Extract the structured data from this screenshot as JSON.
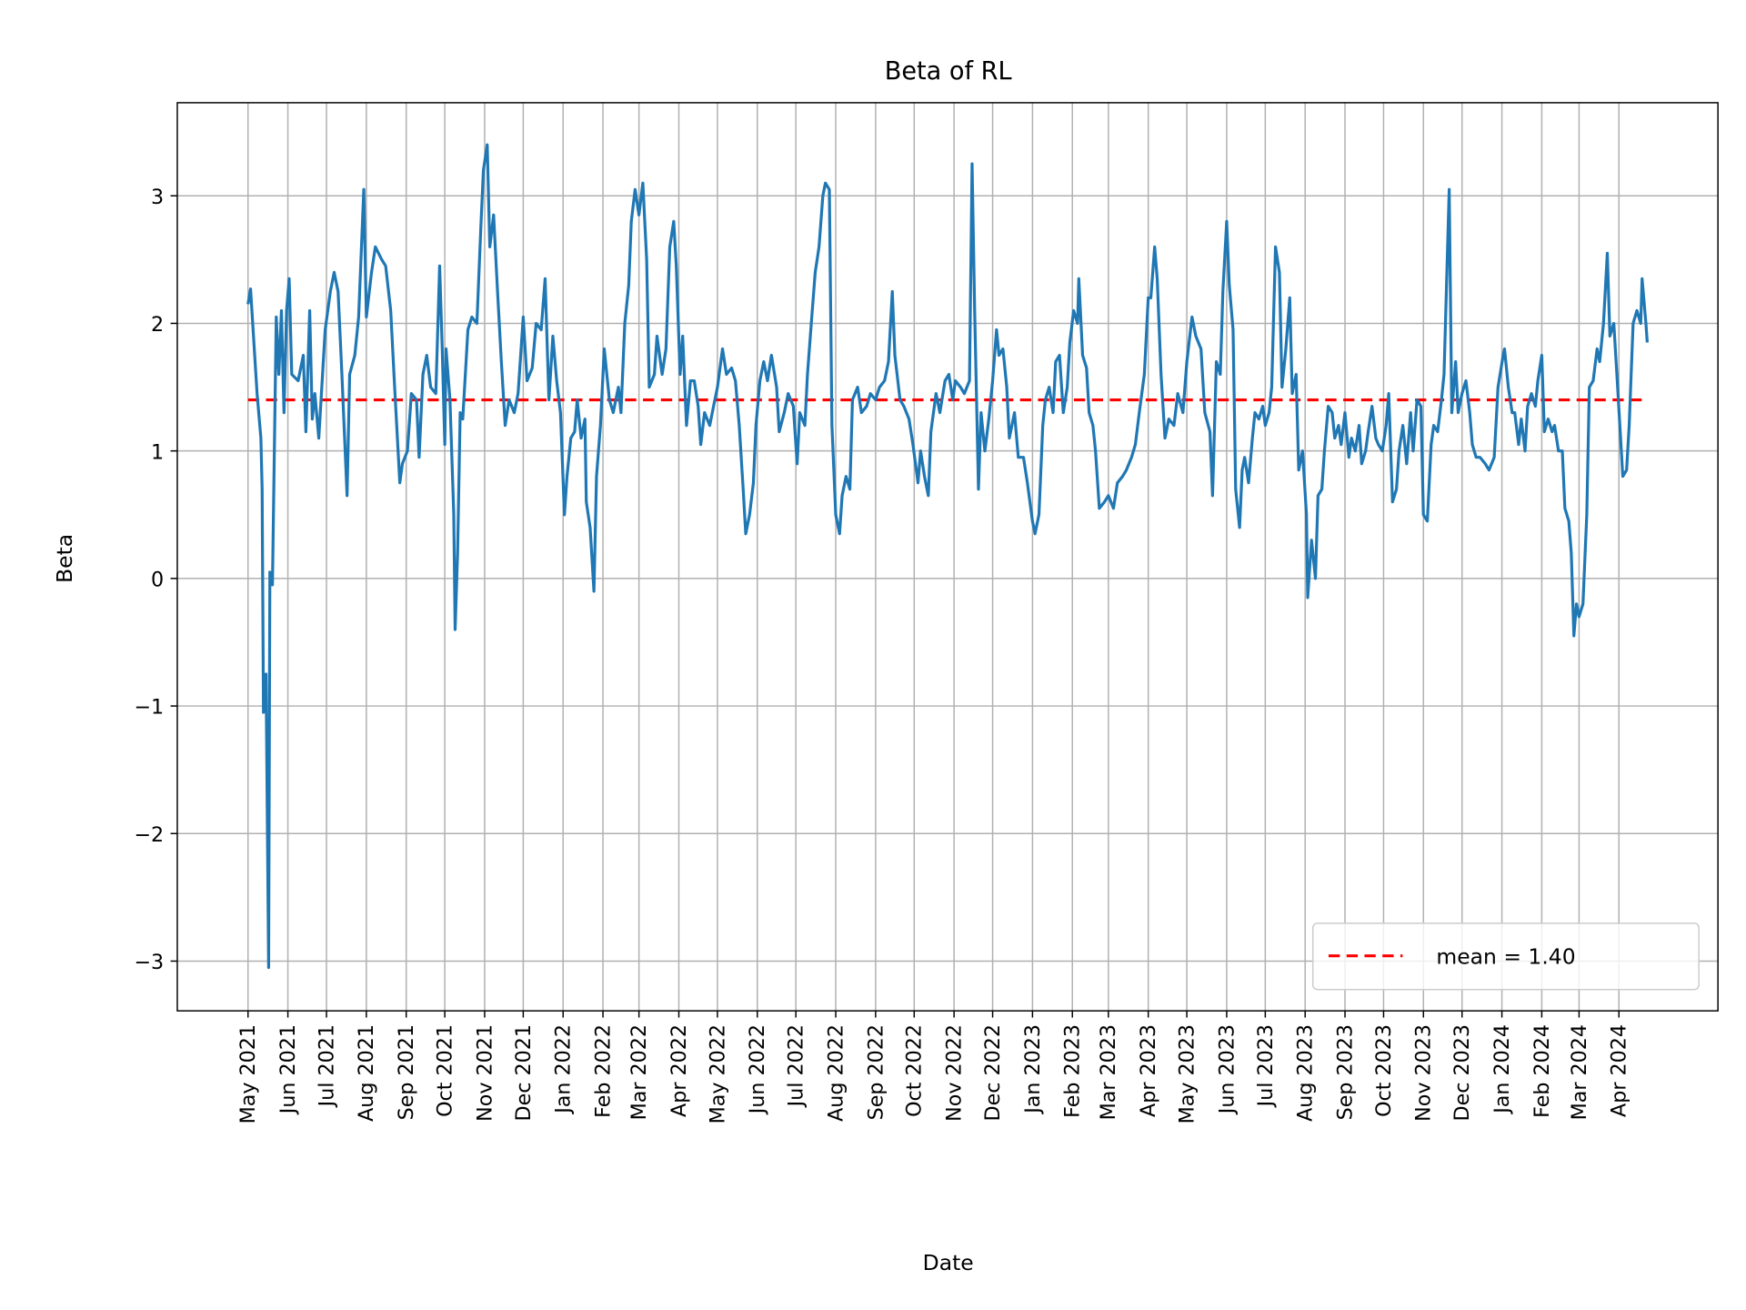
{
  "chart_data": {
    "type": "line",
    "title": "Beta of RL",
    "xlabel": "Date",
    "ylabel": "Beta",
    "xlim": [
      "2021-03-07",
      "2024-06-17"
    ],
    "ylim": [
      -3.39,
      3.73
    ],
    "grid": true,
    "legend_position": "bottom-right",
    "y_ticks": [
      -3,
      -2,
      -1,
      0,
      1,
      2,
      3
    ],
    "y_tick_labels": [
      "−3",
      "−2",
      "−1",
      "0",
      "1",
      "2",
      "3"
    ],
    "x_ticks": [
      "2021-05-01",
      "2021-06-01",
      "2021-07-01",
      "2021-08-01",
      "2021-09-01",
      "2021-10-01",
      "2021-11-01",
      "2021-12-01",
      "2022-01-01",
      "2022-02-01",
      "2022-03-01",
      "2022-04-01",
      "2022-05-01",
      "2022-06-01",
      "2022-07-01",
      "2022-08-01",
      "2022-09-01",
      "2022-10-01",
      "2022-11-01",
      "2022-12-01",
      "2023-01-01",
      "2023-02-01",
      "2023-03-01",
      "2023-04-01",
      "2023-05-01",
      "2023-06-01",
      "2023-07-01",
      "2023-08-01",
      "2023-09-01",
      "2023-10-01",
      "2023-11-01",
      "2023-12-01",
      "2024-01-01",
      "2024-02-01",
      "2024-03-01",
      "2024-04-01"
    ],
    "x_tick_labels": [
      "May 2021",
      "Jun 2021",
      "Jul 2021",
      "Aug 2021",
      "Sep 2021",
      "Oct 2021",
      "Nov 2021",
      "Dec 2021",
      "Jan 2022",
      "Feb 2022",
      "Mar 2022",
      "Apr 2022",
      "May 2022",
      "Jun 2022",
      "Jul 2022",
      "Aug 2022",
      "Sep 2022",
      "Oct 2022",
      "Nov 2022",
      "Dec 2022",
      "Jan 2023",
      "Feb 2023",
      "Mar 2023",
      "Apr 2023",
      "May 2023",
      "Jun 2023",
      "Jul 2023",
      "Aug 2023",
      "Sep 2023",
      "Oct 2023",
      "Nov 2023",
      "Dec 2023",
      "Jan 2024",
      "Feb 2024",
      "Mar 2024",
      "Apr 2024"
    ],
    "mean": {
      "value": 1.4,
      "label": "mean = 1.40",
      "color": "#ff0000",
      "style": "dashed"
    },
    "series": [
      {
        "color": "#1f77b4",
        "x": [
          "2021-05-01",
          "2021-05-03",
          "2021-05-08",
          "2021-05-11",
          "2021-05-12",
          "2021-05-13",
          "2021-05-15",
          "2021-05-17",
          "2021-05-18",
          "2021-05-20",
          "2021-05-23",
          "2021-05-25",
          "2021-05-27",
          "2021-05-29",
          "2021-05-31",
          "2021-06-02",
          "2021-06-04",
          "2021-06-09",
          "2021-06-13",
          "2021-06-15",
          "2021-06-18",
          "2021-06-20",
          "2021-06-22",
          "2021-06-25",
          "2021-06-30",
          "2021-07-04",
          "2021-07-07",
          "2021-07-10",
          "2021-07-13",
          "2021-07-17",
          "2021-07-19",
          "2021-07-23",
          "2021-07-26",
          "2021-07-30",
          "2021-08-01",
          "2021-08-05",
          "2021-08-08",
          "2021-08-13",
          "2021-08-16",
          "2021-08-20",
          "2021-08-23",
          "2021-08-27",
          "2021-08-29",
          "2021-09-02",
          "2021-09-05",
          "2021-09-09",
          "2021-09-11",
          "2021-09-14",
          "2021-09-17",
          "2021-09-20",
          "2021-09-24",
          "2021-09-27",
          "2021-09-29",
          "2021-10-01",
          "2021-10-02",
          "2021-10-05",
          "2021-10-08",
          "2021-10-09",
          "2021-10-11",
          "2021-10-13",
          "2021-10-15",
          "2021-10-19",
          "2021-10-22",
          "2021-10-26",
          "2021-10-29",
          "2021-10-31",
          "2021-11-03",
          "2021-11-05",
          "2021-11-08",
          "2021-11-11",
          "2021-11-14",
          "2021-11-17",
          "2021-11-20",
          "2021-11-24",
          "2021-11-27",
          "2021-12-01",
          "2021-12-04",
          "2021-12-08",
          "2021-12-11",
          "2021-12-15",
          "2021-12-18",
          "2021-12-21",
          "2021-12-24",
          "2021-12-27",
          "2021-12-30",
          "2022-01-02",
          "2022-01-04",
          "2022-01-07",
          "2022-01-10",
          "2022-01-12",
          "2022-01-15",
          "2022-01-18",
          "2022-01-19",
          "2022-01-22",
          "2022-01-25",
          "2022-01-27",
          "2022-01-30",
          "2022-02-02",
          "2022-02-06",
          "2022-02-09",
          "2022-02-13",
          "2022-02-15",
          "2022-02-18",
          "2022-02-21",
          "2022-02-23",
          "2022-02-26",
          "2022-03-01",
          "2022-03-04",
          "2022-03-07",
          "2022-03-09",
          "2022-03-13",
          "2022-03-15",
          "2022-03-19",
          "2022-03-22",
          "2022-03-25",
          "2022-03-28",
          "2022-03-30",
          "2022-04-02",
          "2022-04-04",
          "2022-04-07",
          "2022-04-10",
          "2022-04-13",
          "2022-04-16",
          "2022-04-18",
          "2022-04-21",
          "2022-04-25",
          "2022-04-28",
          "2022-05-01",
          "2022-05-05",
          "2022-05-08",
          "2022-05-12",
          "2022-05-15",
          "2022-05-18",
          "2022-05-21",
          "2022-05-23",
          "2022-05-26",
          "2022-05-29",
          "2022-05-31",
          "2022-06-03",
          "2022-06-06",
          "2022-06-09",
          "2022-06-12",
          "2022-06-16",
          "2022-06-18",
          "2022-06-22",
          "2022-06-25",
          "2022-06-29",
          "2022-07-02",
          "2022-07-04",
          "2022-07-08",
          "2022-07-10",
          "2022-07-13",
          "2022-07-16",
          "2022-07-19",
          "2022-07-22",
          "2022-07-24",
          "2022-07-27",
          "2022-07-29",
          "2022-08-01",
          "2022-08-04",
          "2022-08-06",
          "2022-08-09",
          "2022-08-12",
          "2022-08-14",
          "2022-08-18",
          "2022-08-21",
          "2022-08-25",
          "2022-08-28",
          "2022-09-01",
          "2022-09-04",
          "2022-09-08",
          "2022-09-11",
          "2022-09-14",
          "2022-09-16",
          "2022-09-20",
          "2022-09-23",
          "2022-09-27",
          "2022-09-30",
          "2022-10-04",
          "2022-10-06",
          "2022-10-09",
          "2022-10-12",
          "2022-10-14",
          "2022-10-18",
          "2022-10-21",
          "2022-10-25",
          "2022-10-28",
          "2022-10-31",
          "2022-11-02",
          "2022-11-06",
          "2022-11-09",
          "2022-11-13",
          "2022-11-15",
          "2022-11-17",
          "2022-11-20",
          "2022-11-22",
          "2022-11-25",
          "2022-11-28",
          "2022-12-01",
          "2022-12-04",
          "2022-12-06",
          "2022-12-09",
          "2022-12-12",
          "2022-12-14",
          "2022-12-18",
          "2022-12-21",
          "2022-12-25",
          "2022-12-28",
          "2023-01-01",
          "2023-01-03",
          "2023-01-06",
          "2023-01-09",
          "2023-01-11",
          "2023-01-14",
          "2023-01-17",
          "2023-01-19",
          "2023-01-22",
          "2023-01-25",
          "2023-01-28",
          "2023-01-30",
          "2023-02-02",
          "2023-02-05",
          "2023-02-06",
          "2023-02-09",
          "2023-02-12",
          "2023-02-14",
          "2023-02-17",
          "2023-02-19",
          "2023-02-22",
          "2023-02-26",
          "2023-03-01",
          "2023-03-05",
          "2023-03-08",
          "2023-03-12",
          "2023-03-15",
          "2023-03-19",
          "2023-03-22",
          "2023-03-25",
          "2023-03-29",
          "2023-04-01",
          "2023-04-03",
          "2023-04-06",
          "2023-04-08",
          "2023-04-11",
          "2023-04-14",
          "2023-04-17",
          "2023-04-21",
          "2023-04-24",
          "2023-04-28",
          "2023-05-01",
          "2023-05-05",
          "2023-05-08",
          "2023-05-12",
          "2023-05-15",
          "2023-05-19",
          "2023-05-21",
          "2023-05-24",
          "2023-05-27",
          "2023-05-29",
          "2023-06-01",
          "2023-06-03",
          "2023-06-06",
          "2023-06-08",
          "2023-06-11",
          "2023-06-13",
          "2023-06-15",
          "2023-06-18",
          "2023-06-21",
          "2023-06-23",
          "2023-06-26",
          "2023-06-29",
          "2023-07-01",
          "2023-07-04",
          "2023-07-06",
          "2023-07-09",
          "2023-07-12",
          "2023-07-14",
          "2023-07-17",
          "2023-07-20",
          "2023-07-22",
          "2023-07-25",
          "2023-07-27",
          "2023-07-30",
          "2023-08-02",
          "2023-08-03",
          "2023-08-06",
          "2023-08-09",
          "2023-08-11",
          "2023-08-14",
          "2023-08-16",
          "2023-08-19",
          "2023-08-22",
          "2023-08-24",
          "2023-08-27",
          "2023-08-29",
          "2023-09-01",
          "2023-09-04",
          "2023-09-06",
          "2023-09-09",
          "2023-09-12",
          "2023-09-14",
          "2023-09-17",
          "2023-09-19",
          "2023-09-22",
          "2023-09-25",
          "2023-09-27",
          "2023-09-30",
          "2023-10-03",
          "2023-10-05",
          "2023-10-08",
          "2023-10-11",
          "2023-10-13",
          "2023-10-16",
          "2023-10-19",
          "2023-10-22",
          "2023-10-24",
          "2023-10-27",
          "2023-10-30",
          "2023-11-01",
          "2023-11-04",
          "2023-11-07",
          "2023-11-09",
          "2023-11-12",
          "2023-11-15",
          "2023-11-17",
          "2023-11-21",
          "2023-11-23",
          "2023-11-26",
          "2023-11-28",
          "2023-12-01",
          "2023-12-04",
          "2023-12-07",
          "2023-12-09",
          "2023-12-12",
          "2023-12-15",
          "2023-12-19",
          "2023-12-22",
          "2023-12-26",
          "2023-12-29",
          "2024-01-02",
          "2024-01-03",
          "2024-01-06",
          "2024-01-09",
          "2024-01-11",
          "2024-01-14",
          "2024-01-16",
          "2024-01-19",
          "2024-01-21",
          "2024-01-24",
          "2024-01-27",
          "2024-01-29",
          "2024-02-01",
          "2024-02-03",
          "2024-02-06",
          "2024-02-09",
          "2024-02-11",
          "2024-02-14",
          "2024-02-17",
          "2024-02-19",
          "2024-02-22",
          "2024-02-24",
          "2024-02-26",
          "2024-02-28",
          "2024-03-01",
          "2024-03-04",
          "2024-03-07",
          "2024-03-09",
          "2024-03-12",
          "2024-03-15",
          "2024-03-17",
          "2024-03-20",
          "2024-03-23",
          "2024-03-25",
          "2024-03-28",
          "2024-03-31",
          "2024-04-02",
          "2024-04-04",
          "2024-04-07",
          "2024-04-09",
          "2024-04-12",
          "2024-04-15",
          "2024-04-18",
          "2024-04-19",
          "2024-04-22",
          "2024-04-23"
        ],
        "y": [
          2.15,
          2.27,
          1.45,
          1.1,
          0.7,
          -1.05,
          -0.75,
          -3.05,
          0.05,
          -0.05,
          2.05,
          1.6,
          2.1,
          1.3,
          2.1,
          2.35,
          1.6,
          1.55,
          1.75,
          1.15,
          2.1,
          1.25,
          1.45,
          1.1,
          1.95,
          2.25,
          2.4,
          2.25,
          1.6,
          0.65,
          1.6,
          1.75,
          2.05,
          3.05,
          2.05,
          2.4,
          2.6,
          2.5,
          2.45,
          2.1,
          1.5,
          0.75,
          0.9,
          1.0,
          1.45,
          1.4,
          0.95,
          1.6,
          1.75,
          1.5,
          1.45,
          2.45,
          1.8,
          1.05,
          1.8,
          1.4,
          0.5,
          -0.4,
          0.2,
          1.3,
          1.25,
          1.95,
          2.05,
          2.0,
          2.75,
          3.2,
          3.4,
          2.6,
          2.85,
          2.25,
          1.7,
          1.2,
          1.4,
          1.3,
          1.45,
          2.05,
          1.55,
          1.65,
          2.0,
          1.95,
          2.35,
          1.4,
          1.9,
          1.55,
          1.3,
          0.5,
          0.8,
          1.1,
          1.15,
          1.4,
          1.1,
          1.25,
          0.6,
          0.4,
          -0.1,
          0.8,
          1.2,
          1.8,
          1.4,
          1.3,
          1.5,
          1.3,
          2.0,
          2.3,
          2.8,
          3.05,
          2.85,
          3.1,
          2.5,
          1.5,
          1.6,
          1.9,
          1.6,
          1.8,
          2.6,
          2.8,
          2.45,
          1.6,
          1.9,
          1.2,
          1.55,
          1.55,
          1.35,
          1.05,
          1.3,
          1.2,
          1.35,
          1.5,
          1.8,
          1.6,
          1.65,
          1.55,
          1.2,
          0.7,
          0.35,
          0.5,
          0.75,
          1.2,
          1.55,
          1.7,
          1.55,
          1.75,
          1.5,
          1.15,
          1.3,
          1.45,
          1.35,
          0.9,
          1.3,
          1.2,
          1.6,
          2.0,
          2.4,
          2.6,
          3.0,
          3.1,
          3.05,
          1.2,
          0.5,
          0.35,
          0.65,
          0.8,
          0.7,
          1.4,
          1.5,
          1.3,
          1.35,
          1.45,
          1.4,
          1.5,
          1.55,
          1.7,
          2.25,
          1.75,
          1.4,
          1.35,
          1.25,
          1.05,
          0.75,
          1.0,
          0.8,
          0.65,
          1.15,
          1.45,
          1.3,
          1.55,
          1.6,
          1.4,
          1.55,
          1.5,
          1.45,
          1.55,
          3.25,
          2.1,
          0.7,
          1.3,
          1.0,
          1.25,
          1.55,
          1.95,
          1.75,
          1.8,
          1.5,
          1.1,
          1.3,
          0.95,
          0.95,
          0.75,
          0.45,
          0.35,
          0.5,
          1.2,
          1.4,
          1.5,
          1.3,
          1.7,
          1.75,
          1.3,
          1.5,
          1.85,
          2.1,
          2.0,
          2.35,
          1.75,
          1.65,
          1.3,
          1.2,
          1.0,
          0.55,
          0.6,
          0.65,
          0.55,
          0.75,
          0.8,
          0.85,
          0.95,
          1.05,
          1.3,
          1.6,
          2.2,
          2.2,
          2.6,
          2.35,
          1.6,
          1.1,
          1.25,
          1.2,
          1.45,
          1.3,
          1.7,
          2.05,
          1.9,
          1.8,
          1.3,
          1.15,
          0.65,
          1.7,
          1.6,
          2.25,
          2.8,
          2.3,
          1.95,
          0.7,
          0.4,
          0.85,
          0.95,
          0.75,
          1.1,
          1.3,
          1.25,
          1.35,
          1.2,
          1.3,
          1.5,
          2.6,
          2.4,
          1.5,
          1.8,
          2.2,
          1.45,
          1.6,
          0.85,
          1.0,
          0.5,
          -0.15,
          0.3,
          0.0,
          0.65,
          0.7,
          1.0,
          1.35,
          1.3,
          1.1,
          1.2,
          1.05,
          1.3,
          0.95,
          1.1,
          1.0,
          1.2,
          0.9,
          1.0,
          1.15,
          1.35,
          1.1,
          1.05,
          1.0,
          1.2,
          1.45,
          0.6,
          0.7,
          1.0,
          1.2,
          0.9,
          1.3,
          1.0,
          1.4,
          1.35,
          0.5,
          0.45,
          1.05,
          1.2,
          1.15,
          1.4,
          1.6,
          3.05,
          1.3,
          1.7,
          1.3,
          1.45,
          1.55,
          1.3,
          1.05,
          0.95,
          0.95,
          0.9,
          0.85,
          0.95,
          1.5,
          1.75,
          1.8,
          1.5,
          1.3,
          1.3,
          1.05,
          1.25,
          1.0,
          1.35,
          1.45,
          1.35,
          1.55,
          1.75,
          1.15,
          1.25,
          1.15,
          1.2,
          1.0,
          1.0,
          0.55,
          0.45,
          0.2,
          -0.45,
          -0.2,
          -0.3,
          -0.2,
          0.5,
          1.5,
          1.55,
          1.8,
          1.7,
          2.0,
          2.55,
          1.9,
          2.0,
          1.5,
          1.15,
          0.8,
          0.85,
          1.2,
          2.0,
          2.1,
          2.0,
          2.35,
          2.0,
          1.85
        ]
      }
    ]
  }
}
